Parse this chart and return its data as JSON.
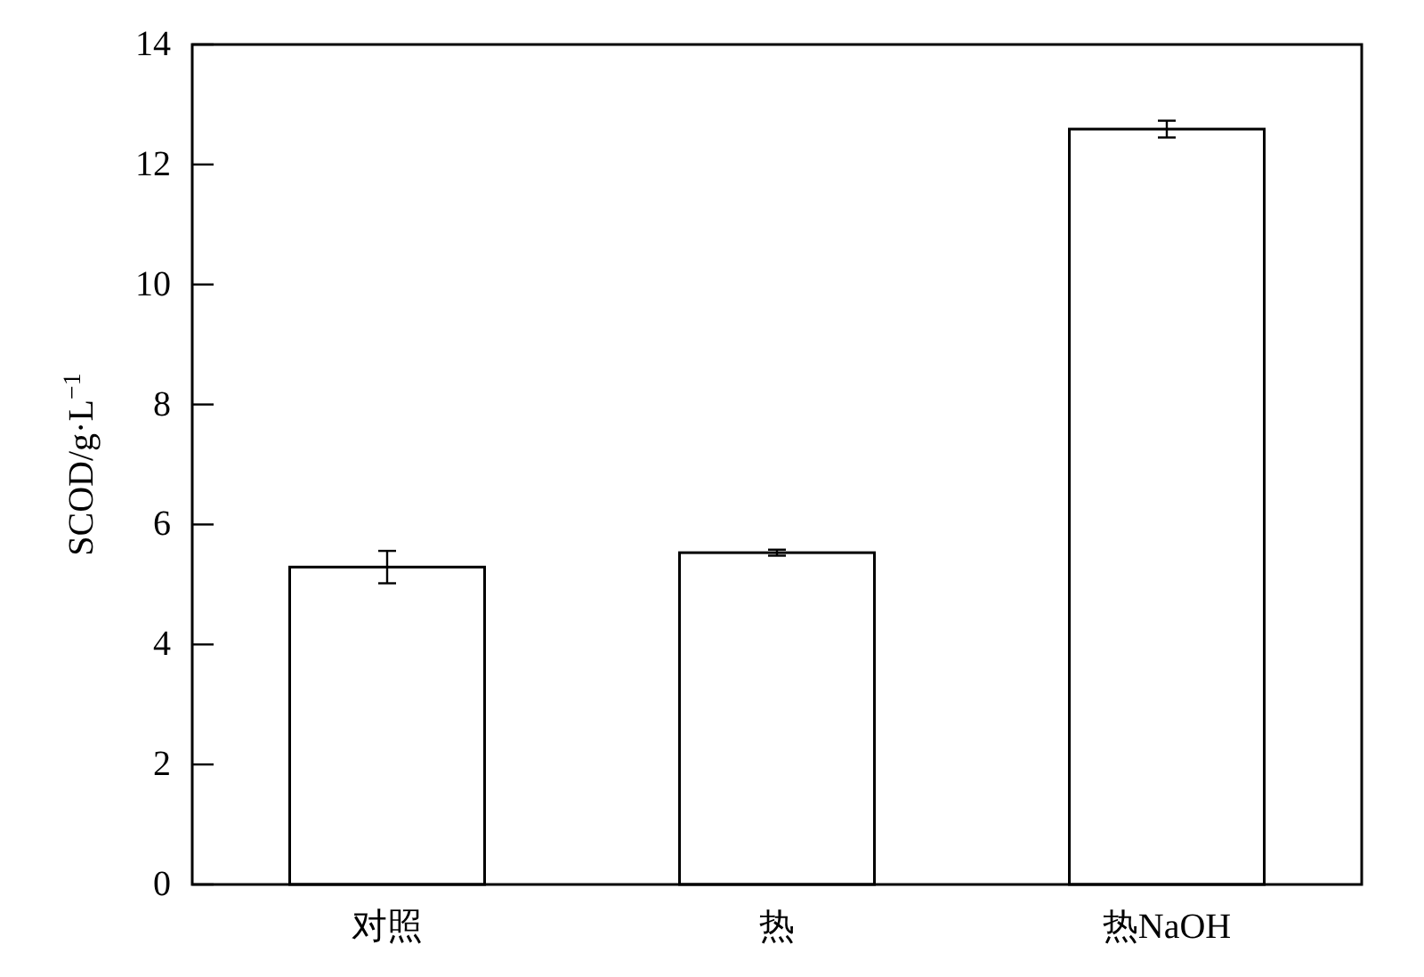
{
  "chart_data": {
    "type": "bar",
    "ylabel": "SCOD/g·L$^{−1}$",
    "categories": [
      "对照",
      "热",
      "热NaOH"
    ],
    "values": [
      5.29,
      5.53,
      12.59
    ],
    "errors": [
      0.27,
      0.05,
      0.14
    ],
    "color": "#ffffff",
    "ylim": [
      0,
      14
    ],
    "yticks": [
      0,
      2,
      4,
      6,
      8,
      10,
      12,
      14
    ],
    "grid": false
  }
}
